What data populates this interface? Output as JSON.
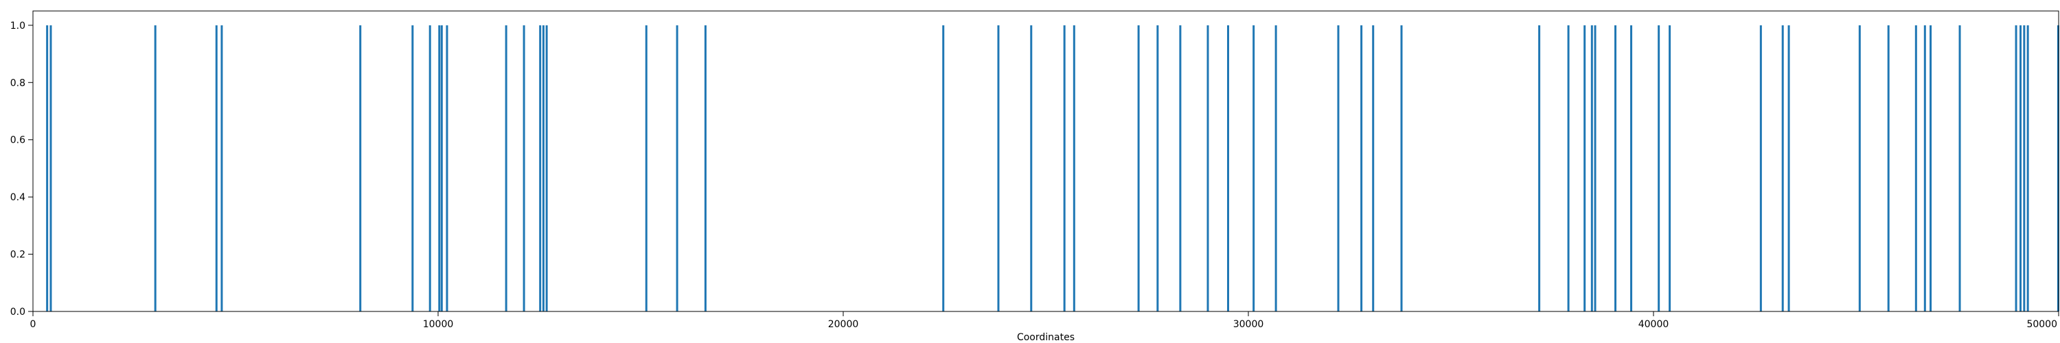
{
  "chart_data": {
    "type": "bar",
    "title": "",
    "xlabel": "Coordinates",
    "ylabel": "",
    "xlim": [
      0,
      50000
    ],
    "ylim": [
      0,
      1.05
    ],
    "grid": false,
    "bar_color": "#1f77b4",
    "x_ticks": [
      {
        "value": 0,
        "label": "0"
      },
      {
        "value": 10000,
        "label": "10000"
      },
      {
        "value": 20000,
        "label": "20000"
      },
      {
        "value": 30000,
        "label": "30000"
      },
      {
        "value": 40000,
        "label": "40000"
      },
      {
        "value": 50000,
        "label": "50000"
      }
    ],
    "y_ticks": [
      {
        "value": 0.0,
        "label": "0.0"
      },
      {
        "value": 0.2,
        "label": "0.2"
      },
      {
        "value": 0.4,
        "label": "0.4"
      },
      {
        "value": 0.6,
        "label": "0.6"
      },
      {
        "value": 0.8,
        "label": "0.8"
      },
      {
        "value": 1.0,
        "label": "1.0"
      }
    ],
    "x": [
      350,
      440,
      3020,
      4530,
      4660,
      8080,
      9370,
      9800,
      10030,
      10090,
      10220,
      11680,
      12120,
      12520,
      12600,
      12680,
      15140,
      15900,
      16600,
      22470,
      23830,
      24640,
      25460,
      25700,
      27290,
      27760,
      28320,
      29000,
      29500,
      30130,
      30680,
      32220,
      32790,
      33080,
      33780,
      37180,
      37900,
      38300,
      38480,
      38560,
      39060,
      39450,
      40130,
      40400,
      42650,
      43190,
      43340,
      45090,
      45800,
      46480,
      46700,
      46840,
      47560,
      48950,
      49060,
      49150,
      49240,
      49990
    ],
    "values": [
      1,
      1,
      1,
      1,
      1,
      1,
      1,
      1,
      1,
      1,
      1,
      1,
      1,
      1,
      1,
      1,
      1,
      1,
      1,
      1,
      1,
      1,
      1,
      1,
      1,
      1,
      1,
      1,
      1,
      1,
      1,
      1,
      1,
      1,
      1,
      1,
      1,
      1,
      1,
      1,
      1,
      1,
      1,
      1,
      1,
      1,
      1,
      1,
      1,
      1,
      1,
      1,
      1,
      1,
      1,
      1,
      1,
      1
    ]
  }
}
